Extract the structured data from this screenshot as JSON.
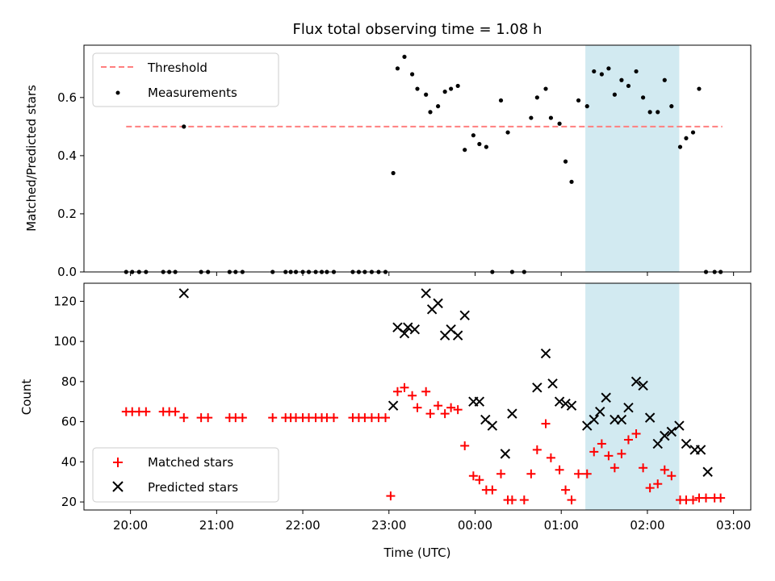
{
  "chart_data": {
    "title": "Flux total observing time = 1.08 h",
    "xlabel": "Time (UTC)",
    "x_ticks": [
      "20:00",
      "21:00",
      "22:00",
      "23:00",
      "00:00",
      "01:00",
      "02:00",
      "03:00"
    ],
    "x_range_hours": [
      19.46,
      27.2
    ],
    "highlight_hours": [
      25.28,
      26.37
    ],
    "highlight_color": "#add8e6",
    "panels": [
      {
        "type": "scatter",
        "ylabel": "Matched/Predicted stars",
        "ylim": [
          0,
          0.78
        ],
        "y_ticks": [
          "0.0",
          "0.2",
          "0.4",
          "0.6"
        ],
        "y_tick_values": [
          0,
          0.2,
          0.4,
          0.6
        ],
        "legend": "upper-left",
        "threshold": {
          "name": "Threshold",
          "value": 0.5,
          "x_range_hours": [
            19.95,
            26.87
          ],
          "color": "#ff7f7f"
        },
        "series": [
          {
            "name": "Measurements",
            "marker": "dot",
            "color": "#000000",
            "x_hours": [
              19.95,
              20.02,
              20.1,
              20.18,
              20.38,
              20.45,
              20.52,
              20.62,
              20.82,
              20.9,
              21.15,
              21.22,
              21.3,
              21.65,
              21.8,
              21.86,
              21.92,
              22.0,
              22.07,
              22.15,
              22.22,
              22.28,
              22.36,
              22.58,
              22.65,
              22.72,
              22.8,
              22.88,
              22.96,
              23.05,
              23.1,
              23.18,
              23.27,
              23.33,
              23.43,
              23.48,
              23.57,
              23.65,
              23.72,
              23.8,
              23.88,
              23.98,
              24.05,
              24.13,
              24.2,
              24.3,
              24.38,
              24.43,
              24.57,
              24.65,
              24.72,
              24.82,
              24.88,
              24.98,
              25.05,
              25.12,
              25.2,
              25.3,
              25.38,
              25.47,
              25.55,
              25.62,
              25.7,
              25.78,
              25.87,
              25.95,
              26.03,
              26.12,
              26.2,
              26.28,
              26.38,
              26.45,
              26.53,
              26.6,
              26.68,
              26.78,
              26.85
            ],
            "y": [
              0,
              0,
              0,
              0,
              0,
              0,
              0,
              0.5,
              0,
              0,
              0,
              0,
              0,
              0,
              0,
              0,
              0,
              0,
              0,
              0,
              0,
              0,
              0,
              0,
              0,
              0,
              0,
              0,
              0,
              0.34,
              0.7,
              0.74,
              0.68,
              0.63,
              0.61,
              0.55,
              0.57,
              0.62,
              0.63,
              0.64,
              0.42,
              0.47,
              0.44,
              0.43,
              0,
              0.59,
              0.48,
              0,
              0,
              0.53,
              0.6,
              0.63,
              0.53,
              0.51,
              0.38,
              0.31,
              0.59,
              0.57,
              0.69,
              0.68,
              0.7,
              0.61,
              0.66,
              0.64,
              0.69,
              0.6,
              0.55,
              0.55,
              0.66,
              0.57,
              0.43,
              0.46,
              0.48,
              0.63,
              0,
              0,
              0
            ]
          }
        ]
      },
      {
        "type": "scatter",
        "ylabel": "Count",
        "ylim": [
          16,
          129
        ],
        "y_ticks": [
          "20",
          "40",
          "60",
          "80",
          "100",
          "120"
        ],
        "y_tick_values": [
          20,
          40,
          60,
          80,
          100,
          120
        ],
        "legend": "lower-left",
        "series": [
          {
            "name": "Matched stars",
            "marker": "plus",
            "color": "#ff0000",
            "x_hours": [
              19.95,
              20.02,
              20.1,
              20.18,
              20.38,
              20.45,
              20.52,
              20.62,
              20.82,
              20.9,
              21.15,
              21.22,
              21.3,
              21.65,
              21.8,
              21.86,
              21.92,
              22.0,
              22.07,
              22.15,
              22.22,
              22.28,
              22.36,
              22.58,
              22.65,
              22.72,
              22.8,
              22.88,
              22.96,
              23.02,
              23.1,
              23.18,
              23.27,
              23.33,
              23.43,
              23.48,
              23.57,
              23.65,
              23.72,
              23.8,
              23.88,
              23.98,
              24.05,
              24.13,
              24.2,
              24.3,
              24.38,
              24.43,
              24.57,
              24.65,
              24.72,
              24.82,
              24.88,
              24.98,
              25.05,
              25.12,
              25.2,
              25.3,
              25.38,
              25.47,
              25.55,
              25.62,
              25.7,
              25.78,
              25.87,
              25.95,
              26.03,
              26.12,
              26.2,
              26.28,
              26.38,
              26.45,
              26.53,
              26.6,
              26.68,
              26.78,
              26.85
            ],
            "y": [
              65,
              65,
              65,
              65,
              65,
              65,
              65,
              62,
              62,
              62,
              62,
              62,
              62,
              62,
              62,
              62,
              62,
              62,
              62,
              62,
              62,
              62,
              62,
              62,
              62,
              62,
              62,
              62,
              62,
              23,
              75,
              77,
              73,
              67,
              75,
              64,
              68,
              64,
              67,
              66,
              48,
              33,
              31,
              26,
              26,
              34,
              21,
              21,
              21,
              34,
              46,
              59,
              42,
              36,
              26,
              21,
              34,
              34,
              45,
              49,
              43,
              37,
              44,
              51,
              54,
              37,
              27,
              29,
              36,
              33,
              21,
              21,
              21,
              22,
              22,
              22,
              22
            ]
          },
          {
            "name": "Predicted stars",
            "marker": "x",
            "color": "#000000",
            "x_hours": [
              20.62,
              23.05,
              23.1,
              23.18,
              23.22,
              23.3,
              23.43,
              23.5,
              23.57,
              23.65,
              23.72,
              23.8,
              23.88,
              23.98,
              24.05,
              24.12,
              24.2,
              24.35,
              24.43,
              24.72,
              24.82,
              24.9,
              24.98,
              25.05,
              25.12,
              25.3,
              25.38,
              25.45,
              25.52,
              25.62,
              25.7,
              25.78,
              25.87,
              25.95,
              26.03,
              26.12,
              26.2,
              26.28,
              26.37,
              26.45,
              26.55,
              26.62,
              26.7
            ],
            "y": [
              124,
              68,
              107,
              104,
              107,
              106,
              124,
              116,
              119,
              103,
              106,
              103,
              113,
              70,
              70,
              61,
              58,
              44,
              64,
              77,
              94,
              79,
              70,
              69,
              68,
              58,
              61,
              65,
              72,
              61,
              61,
              67,
              80,
              78,
              62,
              49,
              53,
              55,
              58,
              49,
              46,
              46,
              35
            ]
          }
        ]
      }
    ]
  }
}
